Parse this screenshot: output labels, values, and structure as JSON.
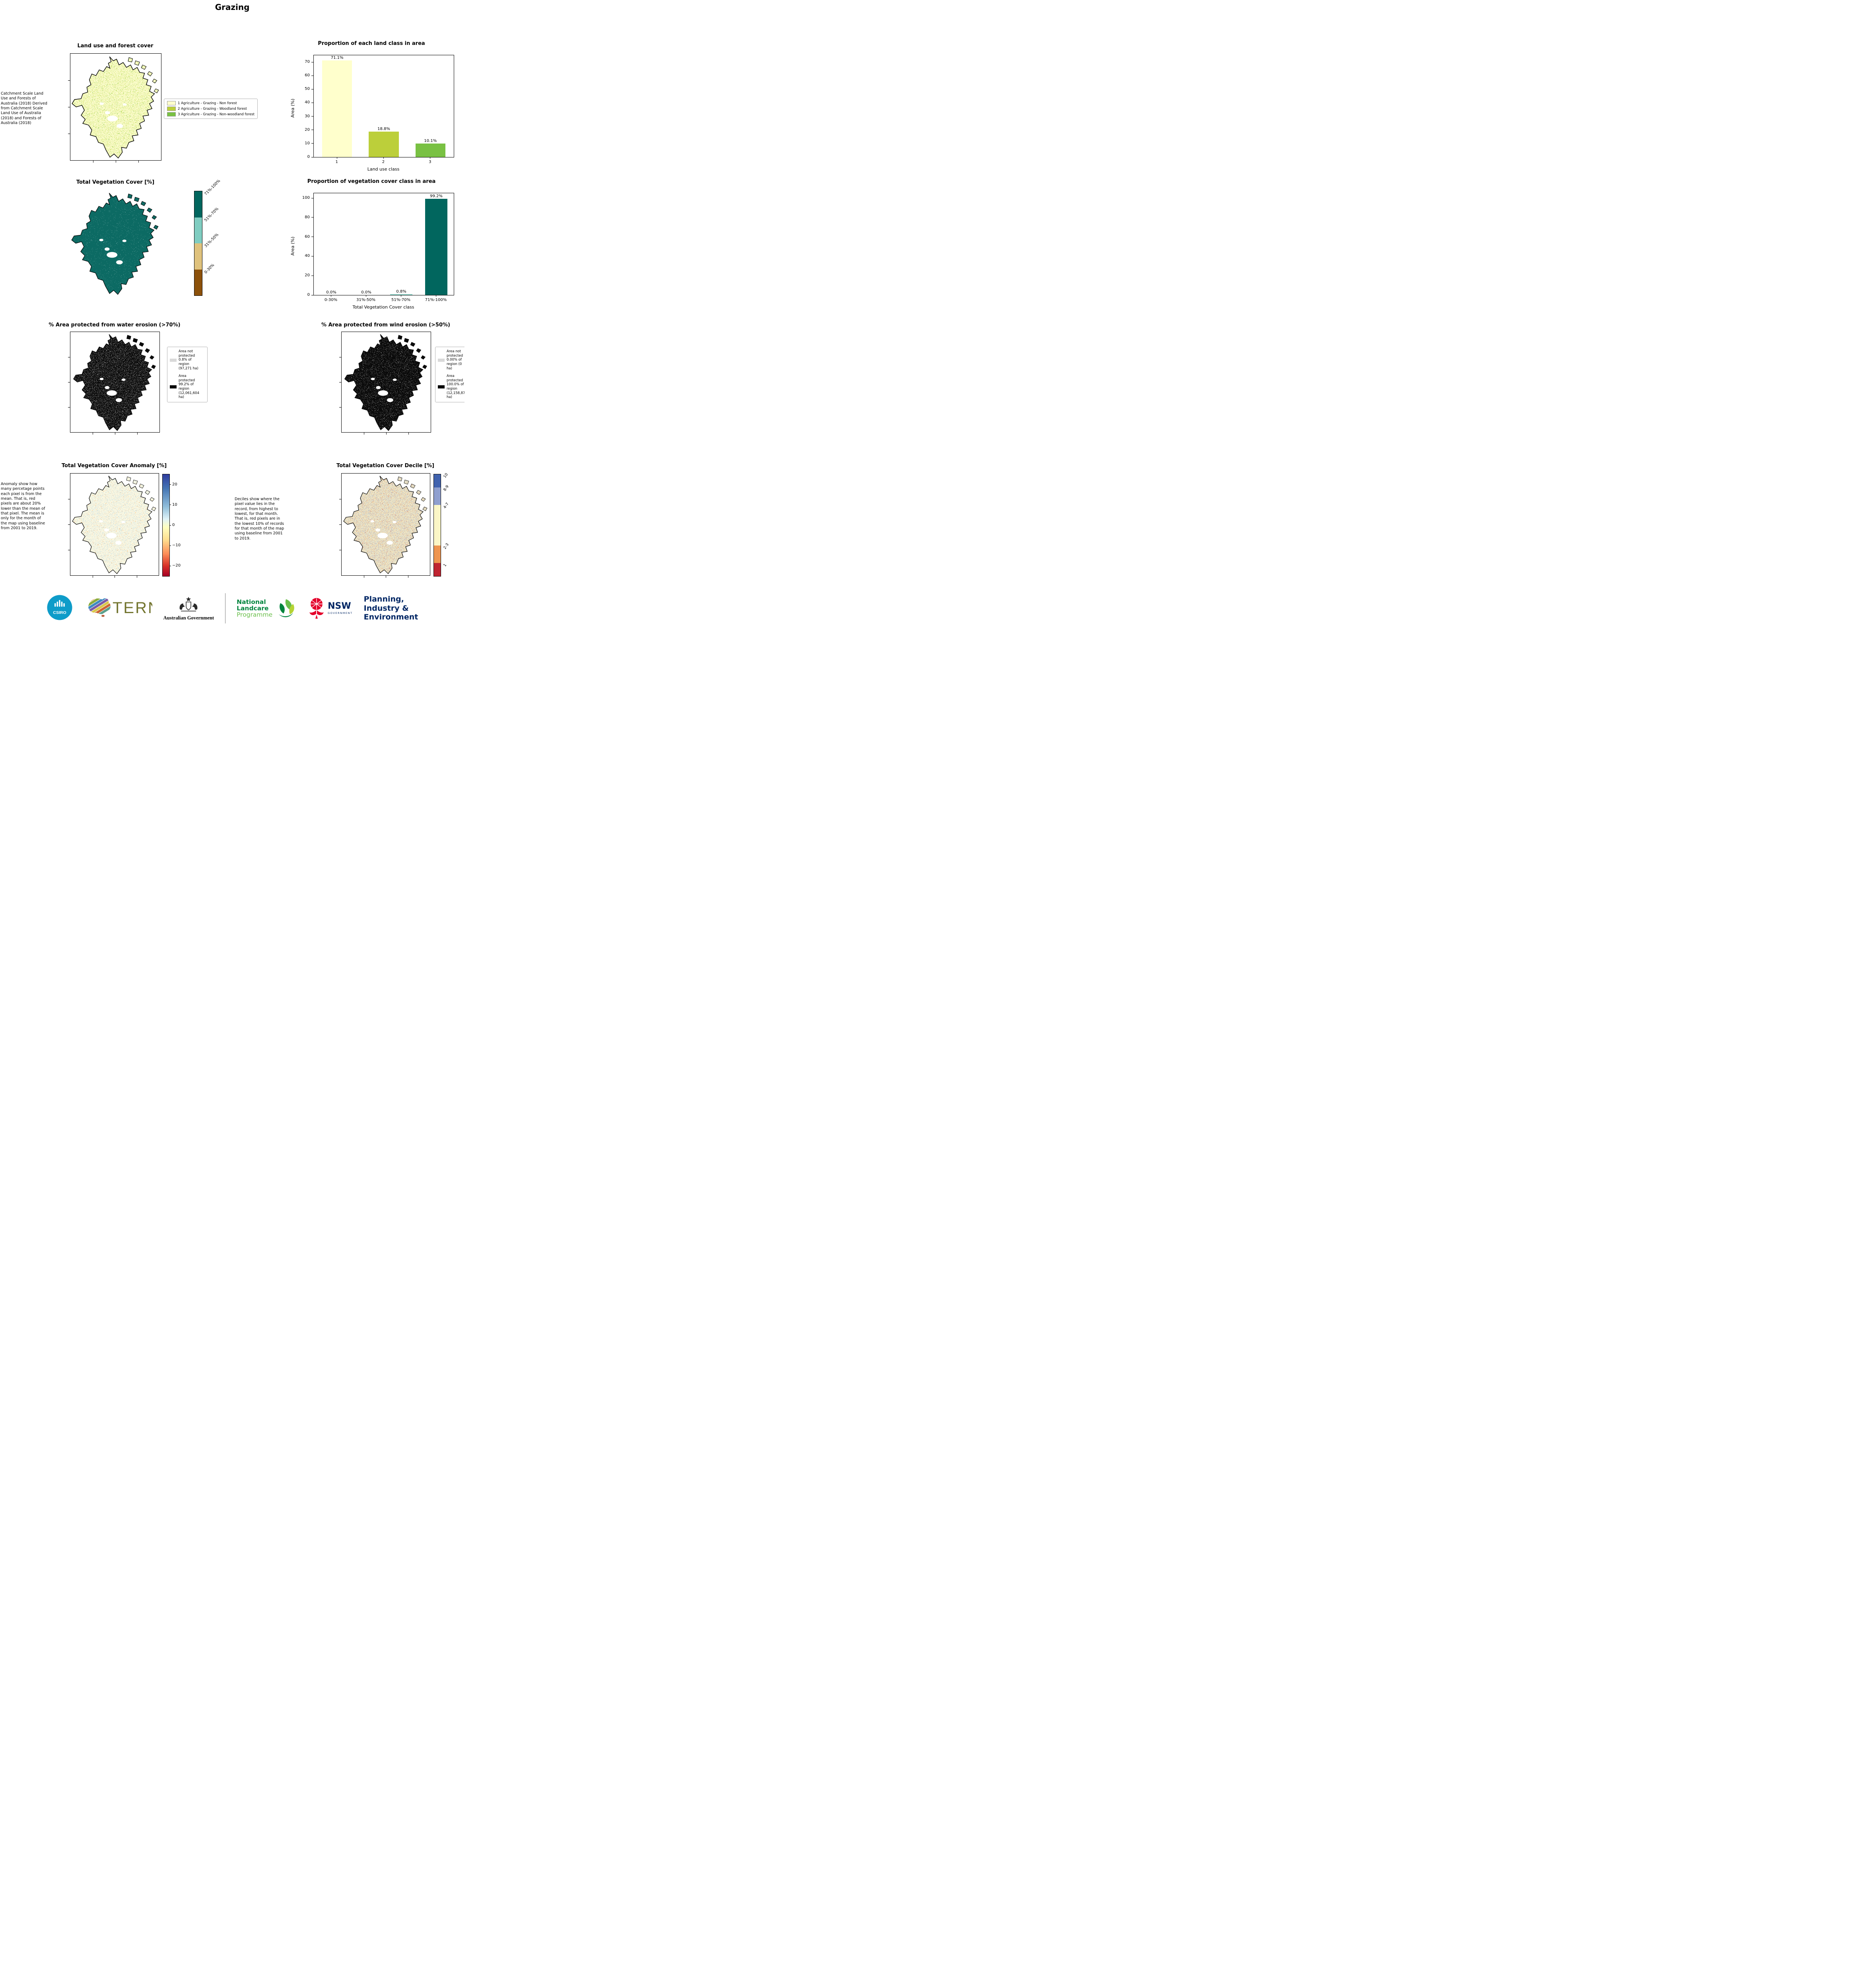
{
  "page": {
    "title": "Grazing"
  },
  "panels": {
    "land_use": {
      "title": "Land use and forest cover",
      "side_text": "Catchment Scale Land Use and Forests of Australia (2018) Derived from Catchment Scale Land Use of Australia (2018) and Forests of Australia (2018)",
      "legend": [
        {
          "label": "1 Agriculture - Grazing - Non forest",
          "color": "#ffffcc"
        },
        {
          "label": "2 Agriculture - Grazing - Woodland forest",
          "color": "#bccf3a"
        },
        {
          "label": "3 Agriculture - Grazing - Non-woodland forest",
          "color": "#79c143"
        }
      ]
    },
    "veg_cover": {
      "title": "Total Vegetation Cover [%]",
      "colorbar": {
        "labels": [
          "71%-100%",
          "51%-70%",
          "31%-50%",
          "0-30%"
        ],
        "colors": [
          "#01665e",
          "#80cdc1",
          "#dfc27d",
          "#8c510a"
        ]
      }
    },
    "water_erosion": {
      "title": "% Area protected from water erosion (>70%)",
      "legend": [
        {
          "label": "Area not protected 0.8% of region (97,271 ha)",
          "color": "#d9d9d9"
        },
        {
          "label": "Area protected 99.2% of region (12,061,604 ha)",
          "color": "#000000"
        }
      ]
    },
    "wind_erosion": {
      "title": "% Area protected from wind erosion (>50%)",
      "legend": [
        {
          "label": "Area not protected 0.00% of region (0 ha)",
          "color": "#d9d9d9"
        },
        {
          "label": "Area protected 100.0% of region (12,158,875 ha)",
          "color": "#000000"
        }
      ]
    },
    "anomaly": {
      "title": "Total Vegetation Cover Anomaly [%]",
      "side_text": "Anomaly show how many percetage points each pixel is from the mean. That is, red pixels are about 20% lower than the mean of that pixel. The mean is only for the month of the map using baseline from 2001 to 2019.",
      "colorbar_ticks": [
        "20",
        "10",
        "0",
        "−10",
        "−20"
      ],
      "colorbar_colors": [
        "#313695",
        "#74add1",
        "#ffffbf",
        "#f46d43",
        "#a50026"
      ]
    },
    "decile": {
      "title": "Total Vegetation Cover Decile [%]",
      "side_text": "Deciles show where the pixel value lies in the record, from highest to lowest, for that month. That is, red pixels are in the lowest 10% of records for that month of the map using baseline from 2001 to 2019.",
      "colorbar": {
        "labels": [
          "10",
          "8-9",
          "4-7",
          "2-3",
          "1"
        ],
        "colors": [
          "#4062ae",
          "#8f9fcf",
          "#fbf6c6",
          "#ee9550",
          "#bf2431"
        ]
      }
    }
  },
  "chart_data": [
    {
      "type": "bar",
      "title": "Proportion of each land class in area",
      "categories": [
        "1",
        "2",
        "3"
      ],
      "values": [
        71.1,
        18.8,
        10.1
      ],
      "bar_labels": [
        "71.1%",
        "18.8%",
        "10.1%"
      ],
      "bar_colors": [
        "#ffffcc",
        "#bccf3a",
        "#79c143"
      ],
      "xlabel": "Land use class",
      "ylabel": "Area (%)",
      "ylim": [
        0,
        75
      ],
      "yticks": [
        "0",
        "10",
        "20",
        "30",
        "40",
        "50",
        "60",
        "70"
      ],
      "grid": false,
      "legend_position": "none"
    },
    {
      "type": "bar",
      "title": "Proportion of vegetation cover class in area",
      "categories": [
        "0-30%",
        "31%-50%",
        "51%-70%",
        "71%-100%"
      ],
      "values": [
        0.0,
        0.0,
        0.8,
        99.2
      ],
      "bar_labels": [
        "0.0%",
        "0.0%",
        "0.8%",
        "99.2%"
      ],
      "bar_colors": [
        "#8c510a",
        "#dfc27d",
        "#80cdc1",
        "#01665e"
      ],
      "xlabel": "Total Vegetation Cover class",
      "ylabel": "Area (%)",
      "ylim": [
        0,
        105
      ],
      "yticks": [
        "0",
        "20",
        "40",
        "60",
        "80",
        "100"
      ],
      "grid": false,
      "legend_position": "none"
    }
  ],
  "footer": {
    "csiro": "CSIRO",
    "tern": "TERN",
    "aus_gov": "Australian Government",
    "landcare": {
      "line1": "National",
      "line2": "Landcare",
      "line3": "Programme"
    },
    "nsw": {
      "name": "NSW",
      "sub": "GOVERNMENT"
    },
    "planning": "Planning,\nIndustry &\nEnvironment"
  }
}
